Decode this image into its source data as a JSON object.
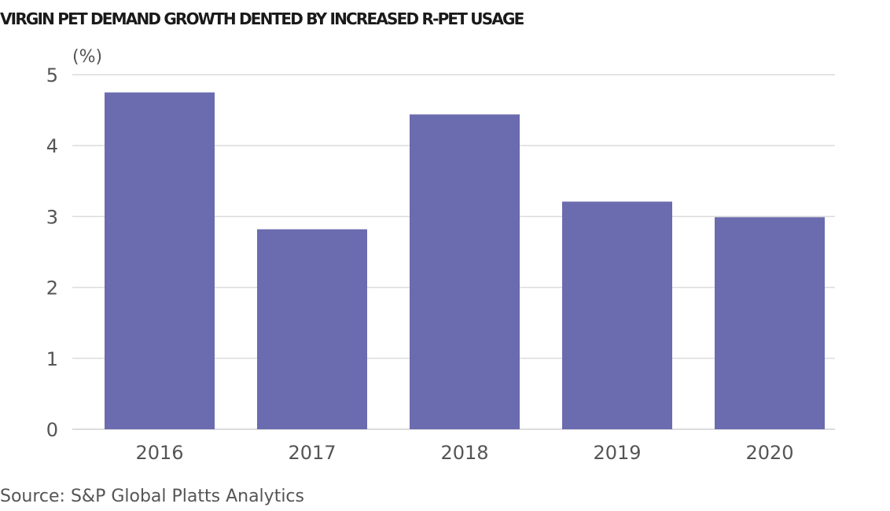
{
  "colors": {
    "bar": "#6b6baf",
    "grid": "#dcdcdc",
    "axis_text": "#555555",
    "title": "#1a1a1a"
  },
  "chart_data": {
    "type": "bar",
    "title": "VIRGIN PET DEMAND GROWTH DENTED BY INCREASED R-PET USAGE",
    "ylabel": "(%)",
    "xlabel": "",
    "categories": [
      "2016",
      "2017",
      "2018",
      "2019",
      "2020"
    ],
    "values": [
      4.75,
      2.82,
      4.44,
      3.21,
      2.99
    ],
    "ylim": [
      0,
      5
    ],
    "yticks": [
      0,
      1,
      2,
      3,
      4,
      5
    ],
    "grid": true,
    "legend": "none"
  },
  "source": "Source: S&P Global Platts Analytics"
}
